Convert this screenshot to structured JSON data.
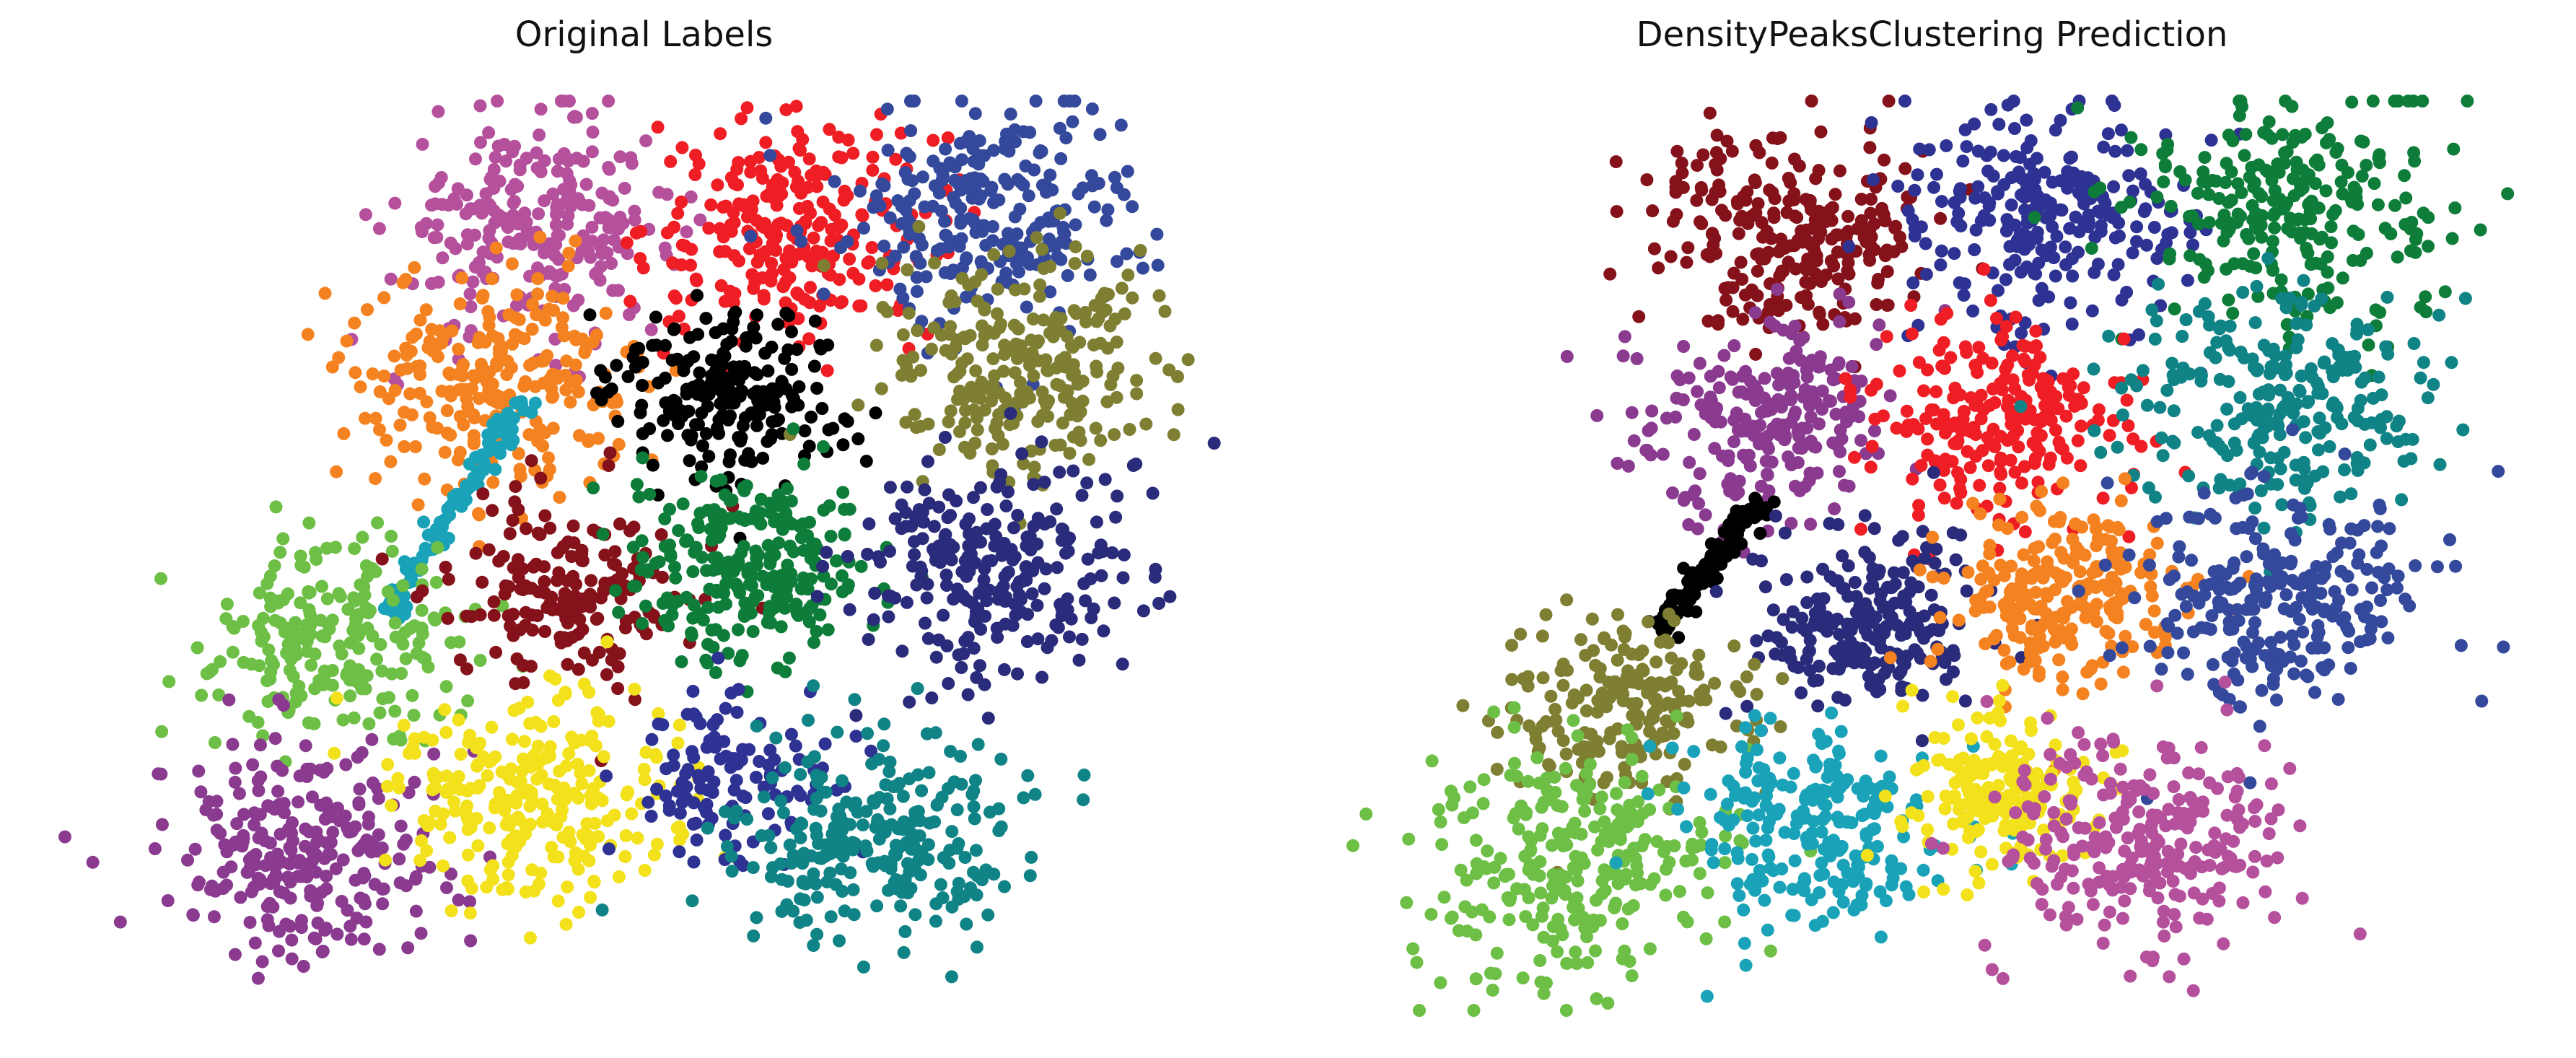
{
  "figure": {
    "left_title": "Original Labels",
    "right_title": "DensityPeaksClustering Prediction"
  },
  "chart_data": [
    {
      "type": "scatter",
      "title": "Original Labels",
      "axes": "off",
      "grid": false,
      "legend": "none",
      "clusters": [
        {
          "color": "#b5509c",
          "center": [
            0.4,
            0.86
          ],
          "spread": 0.06,
          "count": 260
        },
        {
          "color": "#ef1e24",
          "center": [
            0.62,
            0.86
          ],
          "spread": 0.06,
          "count": 260
        },
        {
          "color": "#34499b",
          "center": [
            0.79,
            0.88
          ],
          "spread": 0.065,
          "count": 260
        },
        {
          "color": "#f58220",
          "center": [
            0.37,
            0.69
          ],
          "spread": 0.06,
          "count": 260
        },
        {
          "color": "#000000",
          "center": [
            0.56,
            0.68
          ],
          "spread": 0.05,
          "count": 220
        },
        {
          "color": "#7f7f33",
          "center": [
            0.82,
            0.71
          ],
          "spread": 0.065,
          "count": 260
        },
        {
          "color": "#1aa3b8",
          "shape": "line",
          "from": [
            0.27,
            0.43
          ],
          "to": [
            0.39,
            0.67
          ],
          "count": 90
        },
        {
          "color": "#6dbf45",
          "center": [
            0.23,
            0.4
          ],
          "spread": 0.055,
          "count": 220
        },
        {
          "color": "#85121a",
          "center": [
            0.43,
            0.46
          ],
          "spread": 0.05,
          "count": 180
        },
        {
          "color": "#0e7d3a",
          "center": [
            0.58,
            0.49
          ],
          "spread": 0.05,
          "count": 260
        },
        {
          "color": "#2a2b7b",
          "center": [
            0.79,
            0.48
          ],
          "spread": 0.06,
          "count": 260
        },
        {
          "color": "#8a3b90",
          "center": [
            0.2,
            0.18
          ],
          "spread": 0.06,
          "count": 260
        },
        {
          "color": "#f2e11b",
          "center": [
            0.4,
            0.23
          ],
          "spread": 0.06,
          "count": 260
        },
        {
          "color": "#2e3293",
          "center": [
            0.56,
            0.25
          ],
          "spread": 0.045,
          "count": 120
        },
        {
          "color": "#108386",
          "center": [
            0.69,
            0.19
          ],
          "spread": 0.06,
          "count": 260
        }
      ]
    },
    {
      "type": "scatter",
      "title": "DensityPeaksClustering Prediction",
      "axes": "off",
      "grid": false,
      "legend": "none",
      "clusters": [
        {
          "color": "#85121a",
          "center": [
            0.37,
            0.86
          ],
          "spread": 0.06,
          "count": 260
        },
        {
          "color": "#2e3293",
          "center": [
            0.59,
            0.87
          ],
          "spread": 0.06,
          "count": 260
        },
        {
          "color": "#0e7d3a",
          "center": [
            0.8,
            0.88
          ],
          "spread": 0.065,
          "count": 260
        },
        {
          "color": "#8a3b90",
          "center": [
            0.35,
            0.65
          ],
          "spread": 0.055,
          "count": 240
        },
        {
          "color": "#ef1e24",
          "center": [
            0.55,
            0.65
          ],
          "spread": 0.055,
          "count": 240
        },
        {
          "color": "#108386",
          "center": [
            0.79,
            0.66
          ],
          "spread": 0.065,
          "count": 260
        },
        {
          "color": "#000000",
          "shape": "line",
          "from": [
            0.26,
            0.42
          ],
          "to": [
            0.35,
            0.56
          ],
          "count": 110
        },
        {
          "color": "#2a2b7b",
          "center": [
            0.44,
            0.42
          ],
          "spread": 0.05,
          "count": 220
        },
        {
          "color": "#f58220",
          "center": [
            0.61,
            0.45
          ],
          "spread": 0.05,
          "count": 240
        },
        {
          "color": "#34499b",
          "center": [
            0.79,
            0.45
          ],
          "spread": 0.06,
          "count": 260
        },
        {
          "color": "#7f7f33",
          "center": [
            0.23,
            0.34
          ],
          "spread": 0.05,
          "count": 200
        },
        {
          "color": "#6dbf45",
          "center": [
            0.19,
            0.17
          ],
          "spread": 0.065,
          "count": 280
        },
        {
          "color": "#1aa3b8",
          "center": [
            0.39,
            0.2
          ],
          "spread": 0.055,
          "count": 240
        },
        {
          "color": "#f2e11b",
          "center": [
            0.55,
            0.24
          ],
          "spread": 0.045,
          "count": 180
        },
        {
          "color": "#b5509c",
          "center": [
            0.68,
            0.18
          ],
          "spread": 0.06,
          "count": 260
        }
      ]
    }
  ]
}
